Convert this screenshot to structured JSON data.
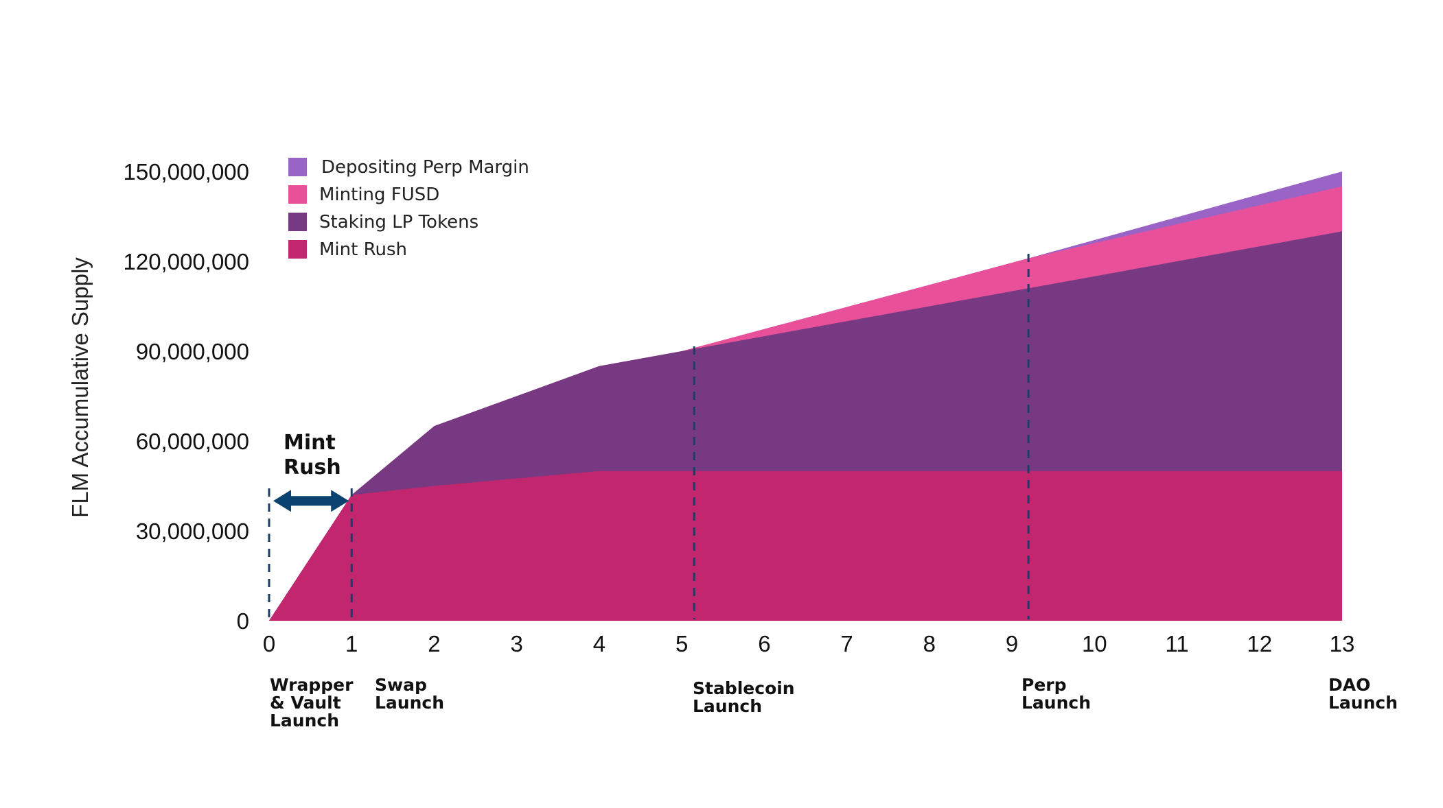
{
  "chart_data": {
    "type": "area",
    "stacked": true,
    "ylabel": "FLM Accumulative Supply",
    "x_ticks": [
      "0",
      "1",
      "2",
      "3",
      "4",
      "5",
      "6",
      "7",
      "8",
      "9",
      "10",
      "11",
      "12",
      "13"
    ],
    "y_ticks": [
      "0",
      "30,000,000",
      "60,000,000",
      "90,000,000",
      "120,000,000",
      "150,000,000"
    ],
    "xlim": [
      0,
      13
    ],
    "ylim": [
      0,
      150000000
    ],
    "grid": false,
    "legend_position": "top-left",
    "series": [
      {
        "name": "Mint Rush",
        "color": "#c2266e",
        "points": [
          [
            0,
            0
          ],
          [
            1,
            42000000
          ],
          [
            2,
            45000000
          ],
          [
            4,
            50000000
          ],
          [
            13,
            50000000
          ]
        ]
      },
      {
        "name": "Staking LP Tokens",
        "color": "#773a82",
        "points": [
          [
            0,
            0
          ],
          [
            1,
            42000000
          ],
          [
            2,
            65000000
          ],
          [
            4,
            85000000
          ],
          [
            5,
            90000000
          ],
          [
            9.2,
            111000000
          ],
          [
            13,
            130000000
          ]
        ]
      },
      {
        "name": "Minting FUSD",
        "color": "#e8519a",
        "points": [
          [
            0,
            0
          ],
          [
            1,
            42000000
          ],
          [
            2,
            65000000
          ],
          [
            4,
            85000000
          ],
          [
            5,
            90000000
          ],
          [
            9.2,
            121000000
          ],
          [
            13,
            145000000
          ]
        ]
      },
      {
        "name": "Depositing Perp Margin",
        "color": "#9a63c6",
        "points": [
          [
            0,
            0
          ],
          [
            1,
            42000000
          ],
          [
            2,
            65000000
          ],
          [
            4,
            85000000
          ],
          [
            5,
            90000000
          ],
          [
            9.2,
            121000000
          ],
          [
            13,
            150000000
          ]
        ]
      }
    ],
    "legend_order": [
      "Depositing Perp Margin",
      "Minting FUSD",
      "Staking LP Tokens",
      "Mint Rush"
    ],
    "milestones": [
      {
        "x": 0,
        "lines": [
          "Wrapper",
          "& Vault",
          "Launch"
        ],
        "dashed": true
      },
      {
        "x": 1,
        "lines": [
          "Swap",
          "Launch"
        ],
        "dashed": true
      },
      {
        "x": 5.15,
        "lines": [
          "Stablecoin",
          "Launch"
        ],
        "dashed": true
      },
      {
        "x": 9.2,
        "lines": [
          "Perp",
          "Launch"
        ],
        "dashed": true
      },
      {
        "x": 13,
        "lines": [
          "DAO",
          "Launch"
        ],
        "dashed": false
      }
    ],
    "annotation": {
      "lines": [
        "Mint",
        "Rush"
      ],
      "x_from": 0,
      "x_to": 1,
      "y": 40000000,
      "arrow_color": "#0b4370"
    }
  }
}
